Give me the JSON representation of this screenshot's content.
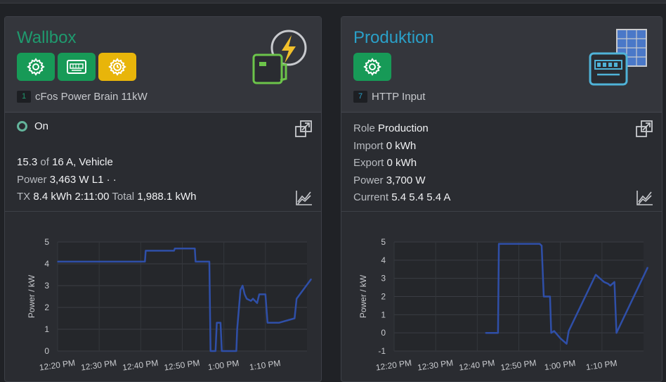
{
  "wallbox": {
    "title": "Wallbox",
    "buttons": [
      {
        "icon": "gear-icon",
        "color": "#179a57"
      },
      {
        "icon": "meter-icon",
        "color": "#179a57"
      },
      {
        "icon": "gear-clock-icon",
        "color": "#e8b50a"
      }
    ],
    "device_id": "1",
    "device_name": "cFos Power Brain 11kW",
    "status": "On",
    "current_value": "15.3",
    "of_label": "of",
    "current_max": "16 A, Vehicle",
    "power_label": "Power",
    "power_value": "3,463 W L1 · ·",
    "tx_label": "TX",
    "tx_value": "8.4 kWh 2:11:00",
    "total_label": "Total",
    "total_value": "1,988.1 kWh",
    "chart_data": {
      "type": "line",
      "ylabel": "Power / kW",
      "xlabel": "",
      "ylim": [
        0,
        5
      ],
      "yticks": [
        "5",
        "4",
        "3",
        "2",
        "1",
        "0"
      ],
      "xticks": [
        "12:20 PM",
        "12:30 PM",
        "12:40 PM",
        "12:50 PM",
        "1:00 PM",
        "1:10 PM"
      ],
      "color": "#2f4fa8",
      "x_minutes_after_1220": [
        0,
        21,
        21.2,
        28,
        28.2,
        33,
        33.2,
        36.5,
        36.8,
        38,
        38.3,
        39.2,
        39.5,
        43,
        43.2,
        44,
        44.5,
        45,
        45.5,
        46.5,
        47,
        48,
        48.5,
        50,
        50.5,
        53,
        53.3,
        57,
        57.5,
        61
      ],
      "values": [
        4.1,
        4.1,
        4.6,
        4.6,
        4.7,
        4.7,
        4.1,
        4.1,
        0,
        0,
        1.3,
        1.3,
        0,
        0,
        1.0,
        2.8,
        3.0,
        2.6,
        2.4,
        2.3,
        2.4,
        2.2,
        2.6,
        2.6,
        1.3,
        1.3,
        1.3,
        1.5,
        2.4,
        3.3
      ]
    }
  },
  "produktion": {
    "title": "Produktion",
    "buttons": [
      {
        "icon": "gear-icon",
        "color": "#179a57"
      }
    ],
    "device_id": "7",
    "device_name": "HTTP Input",
    "role_label": "Role",
    "role_value": "Production",
    "import_label": "Import",
    "import_value": "0 kWh",
    "export_label": "Export",
    "export_value": "0 kWh",
    "power_label": "Power",
    "power_value": "3,700 W",
    "current_label": "Current",
    "current_value": "5.4 5.4 5.4 A",
    "chart_data": {
      "type": "line",
      "ylabel": "Power / kW",
      "xlabel": "",
      "ylim": [
        -1,
        5
      ],
      "yticks": [
        "5",
        "4",
        "3",
        "2",
        "1",
        "0",
        "-1"
      ],
      "xticks": [
        "12:20 PM",
        "12:30 PM",
        "12:40 PM",
        "12:50 PM",
        "1:00 PM",
        "1:10 PM"
      ],
      "color": "#2f4fa8",
      "x_minutes_after_1220": [
        22,
        25,
        25.2,
        35,
        35.5,
        36,
        37.5,
        37.8,
        38.5,
        40,
        41.5,
        42,
        48.5,
        49.5,
        50.5,
        51.5,
        52,
        53,
        53.5,
        61
      ],
      "values": [
        0,
        0,
        4.9,
        4.9,
        4.8,
        2.0,
        2.0,
        0,
        0.1,
        -0.3,
        -0.6,
        0.1,
        3.2,
        3.0,
        2.8,
        2.7,
        2.6,
        2.8,
        0,
        3.6
      ]
    }
  }
}
